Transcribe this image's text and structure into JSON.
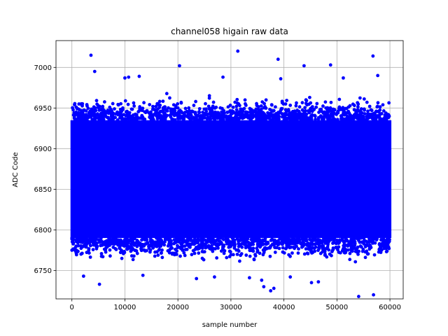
{
  "chart_data": {
    "type": "scatter",
    "title": "channel058 higain raw data",
    "xlabel": "sample number",
    "ylabel": "ADC Code",
    "xlim": [
      -3000,
      62500
    ],
    "ylim": [
      6715,
      7033
    ],
    "xticks": [
      0,
      10000,
      20000,
      30000,
      40000,
      50000,
      60000
    ],
    "yticks": [
      6750,
      6800,
      6850,
      6900,
      6950,
      7000
    ],
    "grid": true,
    "marker_color": "#0000ff",
    "dense_band": {
      "x_range": [
        0,
        60000
      ],
      "y_range": [
        6790,
        6935
      ],
      "mean": 6865
    },
    "series": [
      {
        "x": [
          3600,
          4300,
          31300,
          38900,
          20300,
          48800,
          56800,
          43800,
          57700,
          10000,
          10700,
          12700,
          28500,
          39400,
          51200,
          54100,
          36200,
          37500,
          38100,
          56900,
          5200,
          23500,
          35800,
          45200,
          46500,
          41200,
          2200,
          26900,
          33500,
          13400
        ],
        "y": [
          7015,
          6995,
          7020,
          7010,
          7002,
          7003,
          7014,
          7002,
          6990,
          6987,
          6988,
          6989,
          6988,
          6986,
          6987,
          6718,
          6730,
          6725,
          6728,
          6720,
          6733,
          6740,
          6738,
          6735,
          6736,
          6742,
          6743,
          6742,
          6741,
          6744
        ]
      }
    ]
  }
}
